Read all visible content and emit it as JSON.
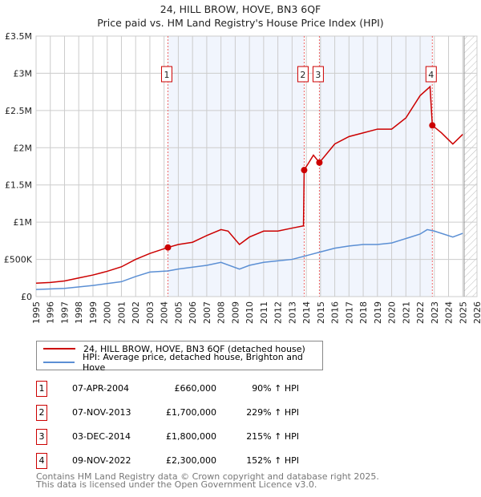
{
  "chart_data": {
    "type": "line",
    "title": "24, HILL BROW, HOVE, BN3 6QF",
    "subtitle": "Price paid vs. HM Land Registry's House Price Index (HPI)",
    "xlim": [
      1995,
      2026
    ],
    "ylim": [
      0,
      3500000
    ],
    "x_ticks": [
      "1995",
      "1996",
      "1997",
      "1998",
      "1999",
      "2000",
      "2001",
      "2002",
      "2003",
      "2004",
      "2005",
      "2006",
      "2007",
      "2008",
      "2009",
      "2010",
      "2011",
      "2012",
      "2013",
      "2014",
      "2015",
      "2016",
      "2017",
      "2018",
      "2019",
      "2020",
      "2021",
      "2022",
      "2023",
      "2024",
      "2025",
      "2026"
    ],
    "y_ticks": [
      {
        "v": 0,
        "label": "£0"
      },
      {
        "v": 500000,
        "label": "£500K"
      },
      {
        "v": 1000000,
        "label": "£1M"
      },
      {
        "v": 1500000,
        "label": "£1.5M"
      },
      {
        "v": 2000000,
        "label": "£2M"
      },
      {
        "v": 2500000,
        "label": "£2.5M"
      },
      {
        "v": 3000000,
        "label": "£3M"
      },
      {
        "v": 3500000,
        "label": "£3.5M"
      }
    ],
    "grid": true,
    "shaded_ranges": [
      [
        2004.27,
        2013.85
      ],
      [
        2014.92,
        2022.86
      ]
    ],
    "forecast_hatch_from": 2025.1,
    "series": [
      {
        "name": "24, HILL BROW, HOVE, BN3 6QF (detached house)",
        "color": "#cc0000",
        "x": [
          1995,
          1996,
          1997,
          1998,
          1999,
          2000,
          2001,
          2002,
          2003,
          2004.27,
          2005,
          2006,
          2007,
          2008,
          2008.5,
          2009.3,
          2010,
          2011,
          2012,
          2013,
          2013.8,
          2013.85,
          2014.5,
          2014.92,
          2016,
          2017,
          2018,
          2019,
          2020,
          2021,
          2022,
          2022.7,
          2022.86,
          2023.5,
          2024.3,
          2025
        ],
        "y": [
          180000,
          190000,
          210000,
          250000,
          290000,
          340000,
          400000,
          500000,
          580000,
          660000,
          700000,
          730000,
          820000,
          900000,
          880000,
          700000,
          800000,
          880000,
          880000,
          920000,
          950000,
          1700000,
          1900000,
          1800000,
          2050000,
          2150000,
          2200000,
          2250000,
          2250000,
          2400000,
          2700000,
          2820000,
          2300000,
          2200000,
          2050000,
          2180000
        ]
      },
      {
        "name": "HPI: Average price, detached house, Brighton and Hove",
        "color": "#5b8fd4",
        "x": [
          1995,
          1997,
          1999,
          2001,
          2002,
          2003,
          2004.27,
          2005,
          2007,
          2008,
          2009.3,
          2010,
          2011,
          2012,
          2013,
          2014,
          2015,
          2016,
          2017,
          2018,
          2019,
          2020,
          2021,
          2022,
          2022.5,
          2023,
          2024.3,
          2025
        ],
        "y": [
          95000,
          110000,
          150000,
          200000,
          270000,
          330000,
          345000,
          370000,
          420000,
          460000,
          370000,
          420000,
          460000,
          480000,
          500000,
          550000,
          600000,
          650000,
          680000,
          700000,
          700000,
          720000,
          780000,
          840000,
          900000,
          880000,
          800000,
          850000
        ]
      }
    ],
    "sales": [
      {
        "n": "1",
        "x": 2004.27,
        "y": 660000,
        "date": "07-APR-2004",
        "price": "£660,000",
        "hpi": "90% ↑ HPI"
      },
      {
        "n": "2",
        "x": 2013.85,
        "y": 1700000,
        "date": "07-NOV-2013",
        "price": "£1,700,000",
        "hpi": "229% ↑ HPI"
      },
      {
        "n": "3",
        "x": 2014.92,
        "y": 1800000,
        "date": "03-DEC-2014",
        "price": "£1,800,000",
        "hpi": "215% ↑ HPI"
      },
      {
        "n": "4",
        "x": 2022.86,
        "y": 2300000,
        "date": "09-NOV-2022",
        "price": "£2,300,000",
        "hpi": "152% ↑ HPI"
      }
    ]
  },
  "footer": {
    "line1": "Contains HM Land Registry data © Crown copyright and database right 2025.",
    "line2": "This data is licensed under the Open Government Licence v3.0."
  }
}
